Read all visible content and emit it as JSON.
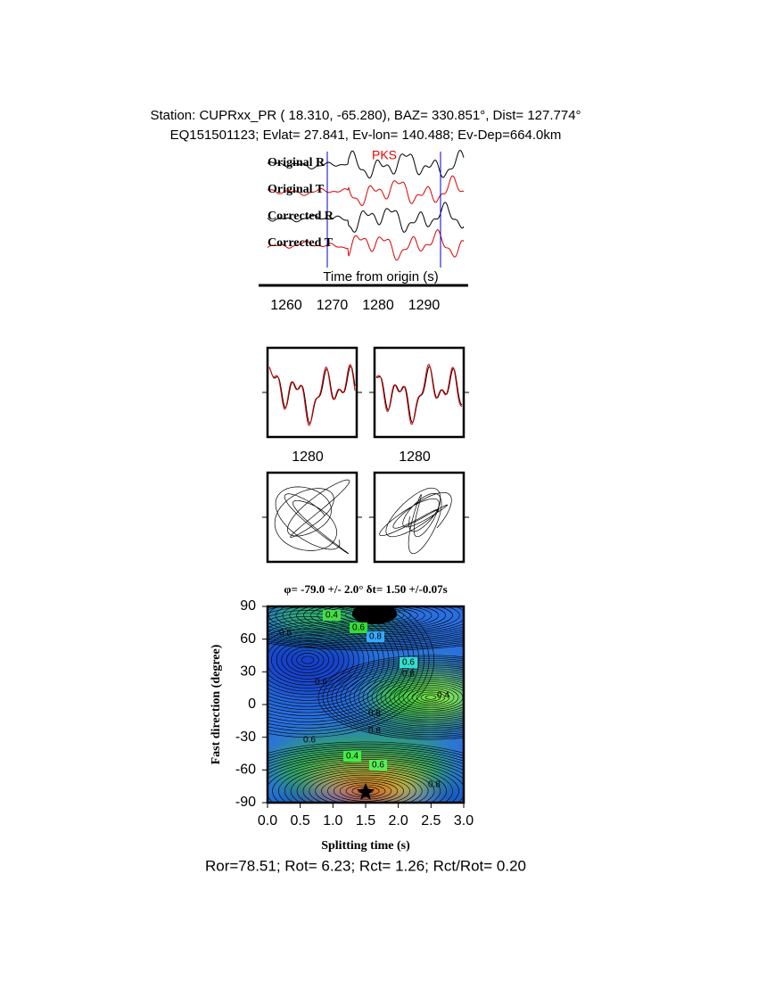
{
  "header": {
    "line1": "Station: CUPRxx_PR (  18.310,  -65.280), BAZ=  330.851°, Dist=  127.774°",
    "line2": "EQ151501123; Evlat=  27.841, Ev-lon= 140.488; Ev-Dep=664.0km"
  },
  "traces": {
    "labels": [
      "Original R",
      "Original T",
      "Corrected R",
      "Corrected T"
    ],
    "phase": "PKS",
    "xlabel": "Time from origin (s)",
    "xticks": [
      "1260",
      "1270",
      "1280",
      "1290"
    ]
  },
  "comparison": {
    "xticks": [
      "1280",
      "1280"
    ]
  },
  "grid_search": {
    "title": "φ= -79.0 +/- 2.0° δt= 1.50 +/-0.07s",
    "ylabel": "Fast direction (degree)",
    "xlabel": "Splitting time (s)",
    "yticks": [
      "90",
      "60",
      "30",
      "0",
      "-30",
      "-60",
      "-90"
    ],
    "xticks": [
      "0.0",
      "0.5",
      "1.0",
      "1.5",
      "2.0",
      "2.5",
      "3.0"
    ],
    "contour_labels": [
      "0.4",
      "0.6",
      "0.8",
      "0.8",
      "0.6",
      "0.8",
      "0.4",
      "0.6",
      "0.8",
      "0.8",
      "0.6",
      "0.4",
      "0.6",
      "0.8"
    ]
  },
  "footer": "Ror=78.51; Rot= 6.23; Rct= 1.26; Rct/Rot= 0.20"
}
